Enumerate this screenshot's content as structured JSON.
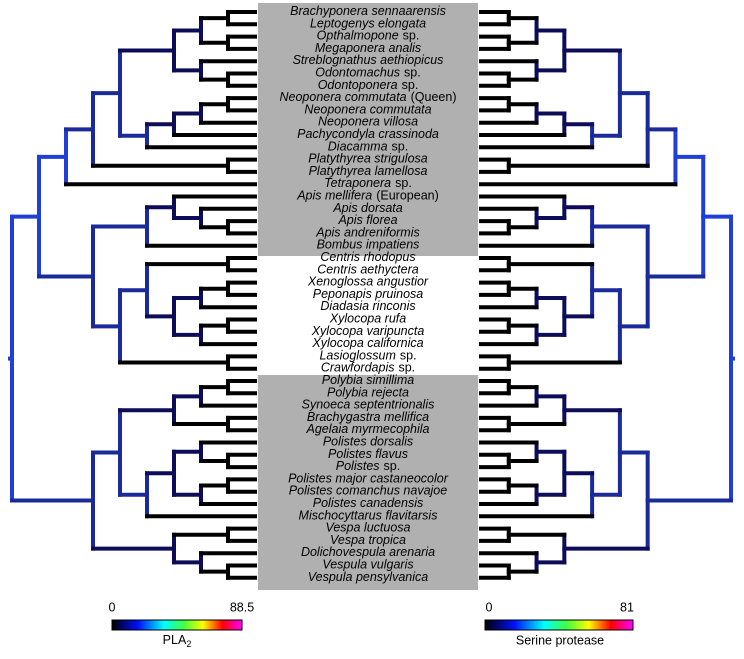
{
  "taxa": [
    {
      "name": "Brachyponera sennaarensis"
    },
    {
      "name": "Leptogenys elongata"
    },
    {
      "name": "Opthalmopone",
      "qualifier": "sp."
    },
    {
      "name": "Megaponera analis"
    },
    {
      "name": "Streblognathus aethiopicus"
    },
    {
      "name": "Odontomachus",
      "qualifier": "sp."
    },
    {
      "name": "Odontoponera",
      "qualifier": "sp."
    },
    {
      "name": "Neoponera commutata",
      "qualifier": "(Queen)"
    },
    {
      "name": "Neoponera commutata"
    },
    {
      "name": "Neoponera villosa"
    },
    {
      "name": "Pachycondyla crassinoda"
    },
    {
      "name": "Diacamma",
      "qualifier": "sp."
    },
    {
      "name": "Platythyrea strigulosa"
    },
    {
      "name": "Platythyrea lamellosa"
    },
    {
      "name": "Tetraponera",
      "qualifier": "sp."
    },
    {
      "name": "Apis mellifera",
      "qualifier": "(European)"
    },
    {
      "name": "Apis dorsata"
    },
    {
      "name": "Apis florea"
    },
    {
      "name": "Apis andreniformis"
    },
    {
      "name": "Bombus impatiens"
    },
    {
      "name": "Centris rhodopus"
    },
    {
      "name": "Centris aethyctera"
    },
    {
      "name": "Xenoglossa angustior"
    },
    {
      "name": "Peponapis pruinosa"
    },
    {
      "name": "Diadasia rinconis"
    },
    {
      "name": "Xylocopa rufa"
    },
    {
      "name": "Xylocopa varipuncta"
    },
    {
      "name": "Xylocopa californica"
    },
    {
      "name": "Lasioglossum",
      "qualifier": "sp."
    },
    {
      "name": "Crawfordapis",
      "qualifier": "sp."
    },
    {
      "name": "Polybia simillima"
    },
    {
      "name": "Polybia rejecta"
    },
    {
      "name": "Synoeca septentrionalis"
    },
    {
      "name": "Brachygastra mellifica"
    },
    {
      "name": "Agelaia myrmecophila"
    },
    {
      "name": "Polistes dorsalis"
    },
    {
      "name": "Polistes flavus"
    },
    {
      "name": "Polistes",
      "qualifier": "sp."
    },
    {
      "name": "Polistes major castaneocolor"
    },
    {
      "name": "Polistes comanchus navajoe"
    },
    {
      "name": "Polistes canadensis"
    },
    {
      "name": "Mischocyttarus flavitarsis"
    },
    {
      "name": "Vespa luctuosa"
    },
    {
      "name": "Vespa tropica"
    },
    {
      "name": "Dolichovespula arenaria"
    },
    {
      "name": "Vespula vulgaris"
    },
    {
      "name": "Vespula pensylvanica"
    }
  ],
  "legend_left": {
    "min": "0",
    "max": "88.5",
    "label": "PLA",
    "subscript": "2"
  },
  "legend_right": {
    "min": "0",
    "max": "81",
    "label": "Serine protease"
  }
}
